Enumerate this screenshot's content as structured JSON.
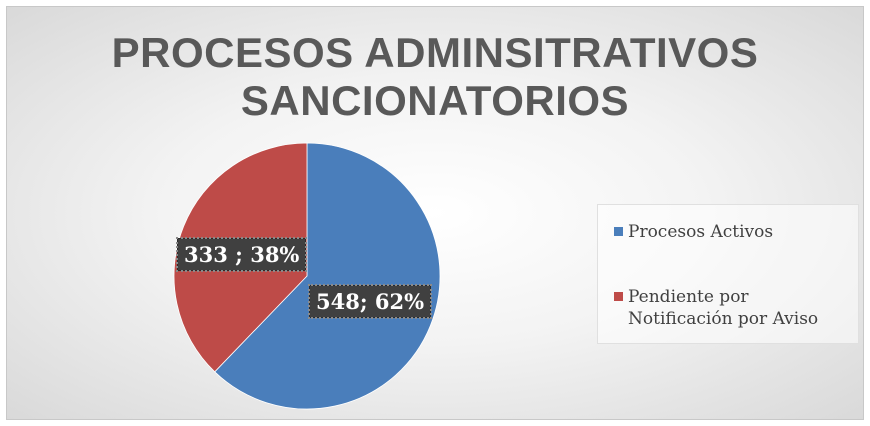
{
  "chart_data": {
    "type": "pie",
    "title_lines": [
      "PROCESOS ADMINSITRATIVOS",
      "SANCIONATORIOS"
    ],
    "slices": [
      {
        "name": "Procesos Activos",
        "value": 548,
        "percent": 62,
        "label": "548; 62%",
        "color": "#4a7ebb"
      },
      {
        "name": "Pendiente por Notificación por Aviso",
        "value": 333,
        "percent": 38,
        "label": "333 ; 38%",
        "color": "#be4b48"
      }
    ],
    "legend": {
      "position": "right",
      "items": [
        {
          "lines": [
            "Procesos Activos"
          ],
          "color": "#4a7ebb"
        },
        {
          "lines": [
            "Pendiente por",
            "Notificación por Aviso"
          ],
          "color": "#be4b48"
        }
      ]
    }
  }
}
